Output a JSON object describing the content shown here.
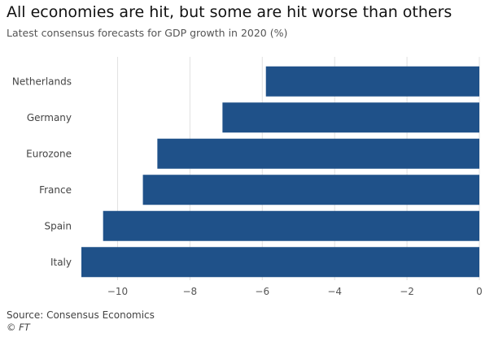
{
  "header": {
    "title": "All economies are hit, but some are hit worse than others",
    "subtitle": "Latest consensus forecasts for GDP growth in 2020 (%)"
  },
  "footer": {
    "source": "Source: Consensus Economics",
    "copyright": "© FT"
  },
  "colors": {
    "bar": "#1f5189",
    "grid": "#e0e0e0",
    "axis_text": "#555555",
    "category_text": "#444444"
  },
  "chart_data": {
    "type": "bar",
    "orientation": "horizontal",
    "categories": [
      "Netherlands",
      "Germany",
      "Eurozone",
      "France",
      "Spain",
      "Italy"
    ],
    "values": [
      -5.9,
      -7.1,
      -8.9,
      -9.3,
      -10.4,
      -11.0
    ],
    "xlim": [
      -11,
      0
    ],
    "xticks": [
      -10,
      -8,
      -6,
      -4,
      -2,
      0
    ],
    "title": "All economies are hit, but some are hit worse than others",
    "subtitle": "Latest consensus forecasts for GDP growth in 2020 (%)",
    "xlabel": "",
    "ylabel": "",
    "grid": "vertical",
    "legend": "none"
  }
}
